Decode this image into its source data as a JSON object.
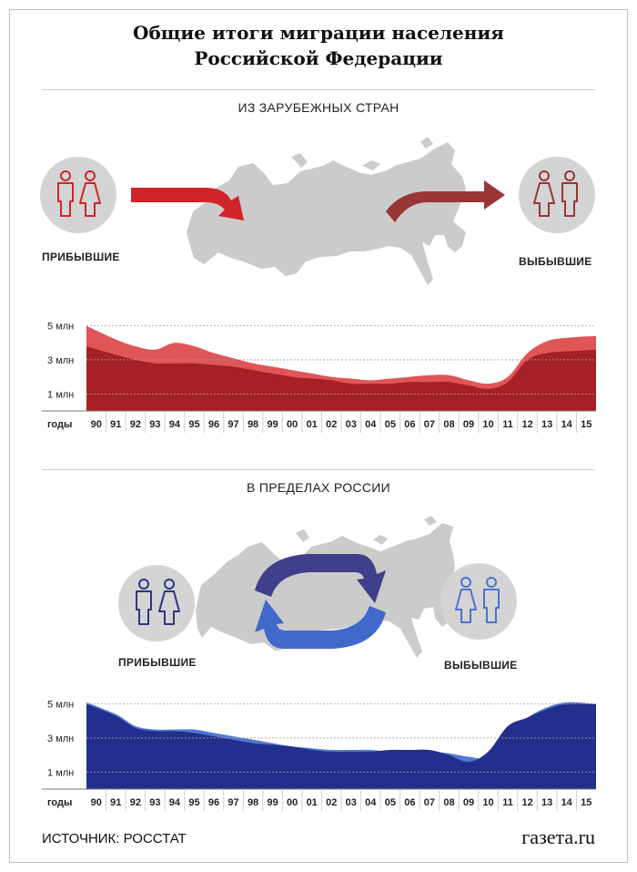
{
  "title_line1": "Общие итоги миграции населения",
  "title_line2": "Российской Федерации",
  "section1": {
    "title": "ИЗ ЗАРУБЕЖНЫХ СТРАН",
    "arrivals_label": "ПРИБЫВШИЕ",
    "departures_label": "ВЫБЫВШИЕ"
  },
  "section2": {
    "title": "В ПРЕДЕЛАХ РОССИИ",
    "arrivals_label": "ПРИБЫВШИЕ",
    "departures_label": "ВЫБЫВШИЕ"
  },
  "source": "ИСТОЧНИК: РОССТАТ",
  "brand": "газета.ru",
  "colors": {
    "red_light": "#e05556",
    "red_dark": "#a52125",
    "blue_light": "#5079cf",
    "blue_dark": "#232f8c",
    "gray_icon": "#d4d4d4",
    "map": "#cbcbcb"
  },
  "chart_data": [
    {
      "type": "area",
      "x_axis_label": "годы",
      "categories": [
        "90",
        "91",
        "92",
        "93",
        "94",
        "95",
        "96",
        "97",
        "98",
        "99",
        "00",
        "01",
        "02",
        "03",
        "04",
        "05",
        "06",
        "07",
        "08",
        "09",
        "10",
        "11",
        "12",
        "13",
        "14",
        "15"
      ],
      "y_tick_labels": [
        "5 млн",
        "3 млн",
        "1 млн"
      ],
      "y_ticks": [
        5,
        3,
        1
      ],
      "ylim": [
        0,
        5.3
      ],
      "series": [
        {
          "values": [
            5.0,
            4.2,
            3.8,
            3.6,
            4.0,
            3.8,
            3.4,
            3.1,
            2.8,
            2.6,
            2.4,
            2.2,
            2.0,
            1.9,
            1.8,
            1.9,
            2.0,
            2.1,
            2.1,
            1.8,
            1.6,
            2.0,
            3.4,
            4.1,
            4.3,
            4.4
          ]
        },
        {
          "values": [
            3.8,
            3.3,
            3.0,
            2.8,
            2.8,
            2.8,
            2.7,
            2.6,
            2.4,
            2.2,
            2.0,
            1.9,
            1.8,
            1.6,
            1.6,
            1.6,
            1.7,
            1.7,
            1.7,
            1.5,
            1.3,
            1.7,
            3.0,
            3.4,
            3.5,
            3.6
          ]
        }
      ]
    },
    {
      "type": "area",
      "x_axis_label": "годы",
      "categories": [
        "90",
        "91",
        "92",
        "93",
        "94",
        "95",
        "96",
        "97",
        "98",
        "99",
        "00",
        "01",
        "02",
        "03",
        "04",
        "05",
        "06",
        "07",
        "08",
        "09",
        "10",
        "11",
        "12",
        "13",
        "14",
        "15"
      ],
      "y_tick_labels": [
        "5 млн",
        "3 млн",
        "1 млн"
      ],
      "y_ticks": [
        5,
        3,
        1
      ],
      "ylim": [
        0,
        5.3
      ],
      "series": [
        {
          "values": [
            5.1,
            4.4,
            3.7,
            3.5,
            3.5,
            3.5,
            3.3,
            3.1,
            2.9,
            2.7,
            2.5,
            2.4,
            2.3,
            2.3,
            2.3,
            2.2,
            2.2,
            2.2,
            2.1,
            1.9,
            1.9,
            3.3,
            4.2,
            4.8,
            5.1,
            5.0
          ]
        },
        {
          "values": [
            5.0,
            4.3,
            3.6,
            3.4,
            3.4,
            3.3,
            3.1,
            2.9,
            2.7,
            2.6,
            2.5,
            2.3,
            2.2,
            2.2,
            2.2,
            2.3,
            2.3,
            2.3,
            2.0,
            1.6,
            2.2,
            3.7,
            4.2,
            4.7,
            5.0,
            5.0
          ]
        }
      ]
    }
  ]
}
